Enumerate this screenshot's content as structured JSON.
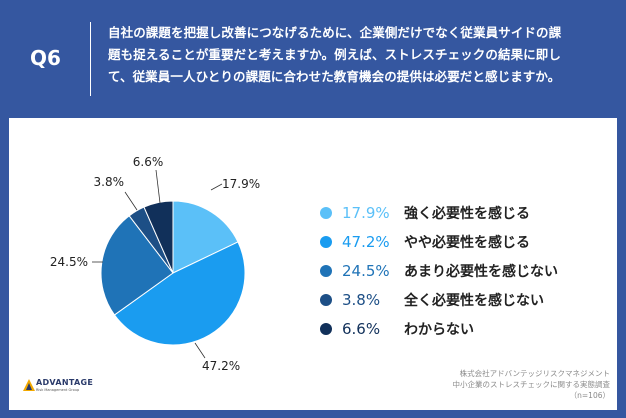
{
  "header": {
    "question_number": "Q6",
    "question_lines": [
      "自社の課題を把握し改善につなげるために、企業側だけでなく従業員サイドの課",
      "題も捉えることが重要だと考えますか。例えば、ストレスチェックの結果に即し",
      "て、従業員一人ひとりの課題に合わせた教育機会の提供は必要だと感じますか。"
    ]
  },
  "chart_data": {
    "type": "pie",
    "title": "",
    "slices": [
      {
        "label": "強く必要性を感じる",
        "value": 17.9,
        "value_text": "17.9%",
        "color": "#5bc0f8"
      },
      {
        "label": "やや必要性を感じる",
        "value": 47.2,
        "value_text": "47.2%",
        "color": "#1a9cf0"
      },
      {
        "label": "あまり必要性を感じない",
        "value": 24.5,
        "value_text": "24.5%",
        "color": "#1f73b7"
      },
      {
        "label": "全く必要性を感じない",
        "value": 3.8,
        "value_text": "3.8%",
        "color": "#1d4f86"
      },
      {
        "label": "わからない",
        "value": 6.6,
        "value_text": "6.6%",
        "color": "#11305a"
      }
    ],
    "legend_position": "right",
    "start_angle_deg": 0,
    "direction": "clockwise"
  },
  "legend": {
    "items": [
      {
        "pct": "17.9%",
        "label": "強く必要性を感じる"
      },
      {
        "pct": "47.2%",
        "label": "やや必要性を感じる"
      },
      {
        "pct": "24.5%",
        "label": "あまり必要性を感じない"
      },
      {
        "pct": "3.8%",
        "label": "全く必要性を感じない"
      },
      {
        "pct": "6.6%",
        "label": "わからない"
      }
    ]
  },
  "logo": {
    "name": "ADVANTAGE",
    "sub": "Risk Management Group"
  },
  "source": {
    "lines": [
      "株式会社アドバンテッジリスクマネジメント",
      "中小企業のストレスチェックに関する実態調査",
      "（n=106）"
    ]
  }
}
